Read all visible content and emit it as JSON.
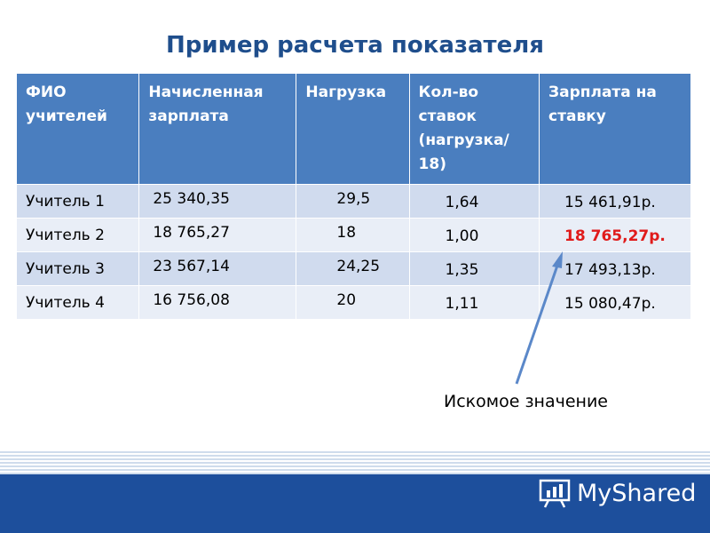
{
  "title": "Пример расчета показателя",
  "table": {
    "headers": [
      "ФИО учителей",
      "Начисленная зарплата",
      "Нагрузка",
      "Кол-во ставок (нагрузка/ 18)",
      "Зарплата на ставку"
    ],
    "rows": [
      [
        "Учитель 1",
        "25 340,35",
        "29,5",
        "1,64",
        "15 461,91р."
      ],
      [
        "Учитель 2",
        "18 765,27",
        "18",
        "1,00",
        "18 765,27р."
      ],
      [
        "Учитель 3",
        "23 567,14",
        "24,25",
        "1,35",
        "17 493,13р."
      ],
      [
        "Учитель 4",
        "16 756,08",
        "20",
        "1,11",
        "15 080,47р."
      ]
    ]
  },
  "annotation": "Искомое значение",
  "logo": {
    "text": "MyShared"
  },
  "colors": {
    "header_bg": "#4a7ebf",
    "row_dark": "#d0dbee",
    "row_light": "#e9eef7",
    "title": "#1f4e8c",
    "highlight": "#e01b1b",
    "arrow": "#5b88c9",
    "footer": "#1d4f9c"
  }
}
